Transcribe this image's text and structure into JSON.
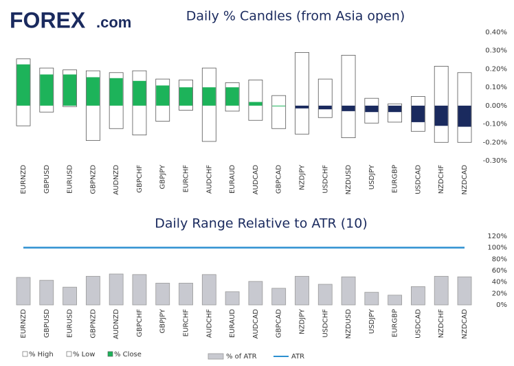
{
  "logo": {
    "name": "FOREX",
    "suffix": ".com"
  },
  "chart_data": [
    {
      "type": "candlestick",
      "title": "Daily % Candles (from Asia open)",
      "categories": [
        "EURNZD",
        "GBPUSD",
        "EURUSD",
        "GBPNZD",
        "AUDNZD",
        "GBPCHF",
        "GBPJPY",
        "EURCHF",
        "AUDCHF",
        "EURAUD",
        "AUDCAD",
        "GBPCAD",
        "NZDJPY",
        "USDCHF",
        "NZDUSD",
        "USDJPY",
        "EURGBP",
        "USDCAD",
        "NZDCHF",
        "NZDCAD"
      ],
      "series": [
        {
          "name": "% High",
          "color": "#ffffff",
          "values": [
            0.255,
            0.205,
            0.195,
            0.19,
            0.18,
            0.19,
            0.145,
            0.14,
            0.205,
            0.125,
            0.14,
            0.055,
            0.29,
            0.145,
            0.275,
            0.04,
            0.01,
            0.05,
            0.215,
            0.18
          ]
        },
        {
          "name": "% Low",
          "color": "#ffffff",
          "values": [
            -0.11,
            -0.035,
            -0.005,
            -0.19,
            -0.125,
            -0.16,
            -0.085,
            -0.025,
            -0.195,
            -0.03,
            -0.08,
            -0.125,
            -0.155,
            -0.065,
            -0.175,
            -0.095,
            -0.09,
            -0.14,
            -0.2,
            -0.2
          ]
        },
        {
          "name": "% Close",
          "color": "#1db35a",
          "negative_color": "#1a2a5e",
          "values": [
            0.225,
            0.17,
            0.17,
            0.155,
            0.15,
            0.135,
            0.11,
            0.1,
            0.1,
            0.1,
            0.02,
            0,
            -0.015,
            -0.02,
            -0.03,
            -0.035,
            -0.035,
            -0.09,
            -0.11,
            -0.115
          ]
        }
      ],
      "ylim": [
        -0.3,
        0.4
      ],
      "yticks": [
        {
          "value": -0.3,
          "label": "-0.30%"
        },
        {
          "value": -0.2,
          "label": "-0.20%"
        },
        {
          "value": -0.1,
          "label": "-0.10%"
        },
        {
          "value": 0,
          "label": "0.00%"
        },
        {
          "value": 0.1,
          "label": "0.10%"
        },
        {
          "value": 0.2,
          "label": "0.20%"
        },
        {
          "value": 0.3,
          "label": "0.30%"
        },
        {
          "value": 0.4,
          "label": "0.40%"
        }
      ]
    },
    {
      "type": "bar",
      "title": "Daily Range Relative to ATR (10)",
      "categories": [
        "EURNZD",
        "GBPUSD",
        "EURUSD",
        "GBPNZD",
        "AUDNZD",
        "GBPCHF",
        "GBPJPY",
        "EURCHF",
        "AUDCHF",
        "EURAUD",
        "AUDCAD",
        "GBPCAD",
        "NZDJPY",
        "USDCHF",
        "NZDUSD",
        "USDJPY",
        "EURGBP",
        "USDCAD",
        "NZDCHF",
        "NZDCAD"
      ],
      "series": [
        {
          "name": "% of ATR",
          "type": "bar",
          "color": "#c8c9d0",
          "values": [
            48,
            43,
            31,
            50,
            54,
            53,
            38,
            38,
            53,
            23,
            41,
            29,
            50,
            36,
            49,
            22,
            17,
            32,
            50,
            49
          ]
        },
        {
          "name": "ATR",
          "type": "line",
          "color": "#2b8fd0",
          "values": [
            100,
            100,
            100,
            100,
            100,
            100,
            100,
            100,
            100,
            100,
            100,
            100,
            100,
            100,
            100,
            100,
            100,
            100,
            100,
            100
          ]
        }
      ],
      "ylim": [
        0,
        120
      ],
      "yticks": [
        {
          "value": 0,
          "label": "0%"
        },
        {
          "value": 20,
          "label": "20%"
        },
        {
          "value": 40,
          "label": "40%"
        },
        {
          "value": 60,
          "label": "60%"
        },
        {
          "value": 80,
          "label": "80%"
        },
        {
          "value": 100,
          "label": "100%"
        },
        {
          "value": 120,
          "label": "120%"
        }
      ]
    }
  ]
}
